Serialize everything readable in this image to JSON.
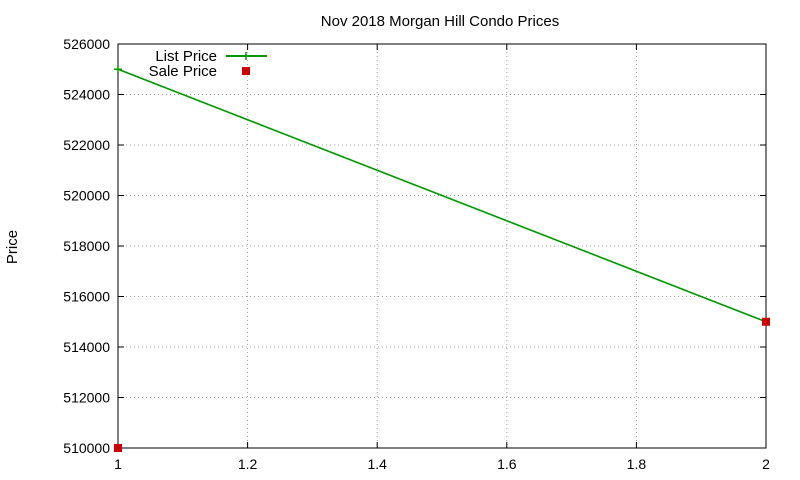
{
  "chart_data": {
    "type": "line",
    "title": "Nov 2018 Morgan Hill Condo Prices",
    "xlabel": "",
    "ylabel": "Price",
    "xlim": [
      1,
      2
    ],
    "ylim": [
      510000,
      526000
    ],
    "xticks": [
      1,
      1.2,
      1.4,
      1.6,
      1.8,
      2
    ],
    "xtick_labels": [
      "1",
      "1.2",
      "1.4",
      "1.6",
      "1.8",
      "2"
    ],
    "yticks": [
      510000,
      512000,
      514000,
      516000,
      518000,
      520000,
      522000,
      524000,
      526000
    ],
    "ytick_labels": [
      "510000",
      "512000",
      "514000",
      "516000",
      "518000",
      "520000",
      "522000",
      "524000",
      "526000"
    ],
    "grid": true,
    "legend_position": "top-left",
    "series": [
      {
        "name": "List Price",
        "style": "line-with-plus-markers",
        "color": "#009900",
        "points": [
          {
            "x": 1,
            "y": 525000
          },
          {
            "x": 2,
            "y": 515000
          }
        ]
      },
      {
        "name": "Sale Price",
        "style": "square-points",
        "color": "#cc0000",
        "points": [
          {
            "x": 1,
            "y": 510000
          },
          {
            "x": 2,
            "y": 515000
          }
        ]
      }
    ]
  }
}
